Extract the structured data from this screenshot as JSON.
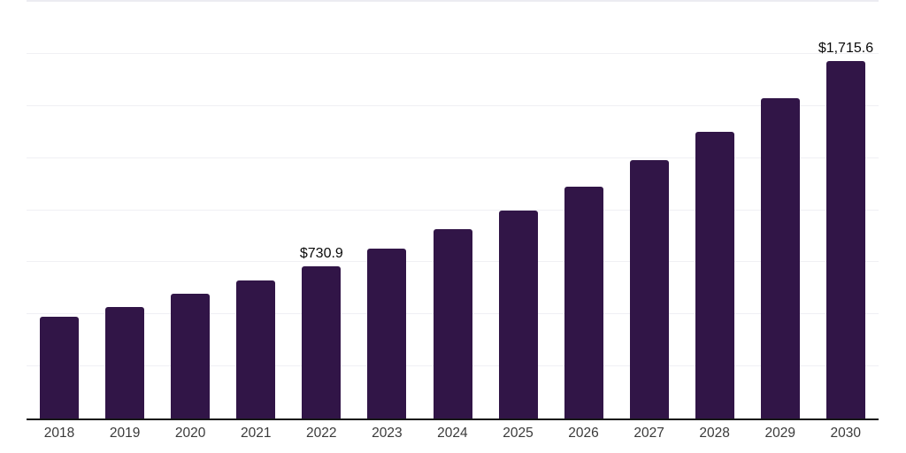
{
  "chart_data": {
    "type": "bar",
    "title": "",
    "xlabel": "",
    "ylabel": "",
    "categories": [
      "2018",
      "2019",
      "2020",
      "2021",
      "2022",
      "2023",
      "2024",
      "2025",
      "2026",
      "2027",
      "2028",
      "2029",
      "2030"
    ],
    "values": [
      490,
      536,
      599,
      663,
      730.9,
      815,
      908,
      1000,
      1114,
      1239,
      1376,
      1537,
      1715.6
    ],
    "annotations": [
      {
        "category_index": 4,
        "text": "$730.9"
      },
      {
        "category_index": 12,
        "text": "$1,715.6"
      }
    ],
    "ylim": [
      0,
      2000
    ],
    "gridline_interval": 250,
    "grid": true,
    "legend_position": "none",
    "bar_color": "#311547",
    "axis_line_color": "#161616",
    "gridline_color": "#f0f0f4",
    "value_label_color": "#0a0a0a",
    "tick_label_color": "#3a3a3a",
    "background_color": "#ffffff"
  }
}
